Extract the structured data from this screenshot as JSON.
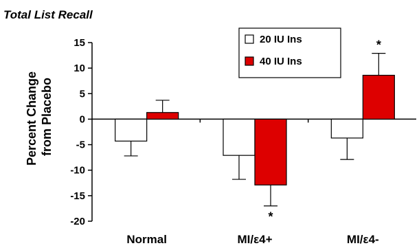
{
  "chart_data": {
    "type": "bar",
    "title": "Total List Recall",
    "ylabel": "Percent Change\nfrom Placebo",
    "xlabel": "",
    "ylim": [
      -20,
      15
    ],
    "yticks": [
      15,
      10,
      5,
      0,
      -5,
      -10,
      -15,
      -20
    ],
    "grid": false,
    "legend_position": "top-center",
    "categories": [
      "Normal",
      "MI/ε4+",
      "MI/ε4-"
    ],
    "series": [
      {
        "name": "20 IU Ins",
        "color": "#ffffff",
        "values": [
          -4.3,
          -7.1,
          -3.7
        ],
        "errors": [
          2.9,
          4.7,
          4.2
        ],
        "significant": [
          false,
          false,
          false
        ]
      },
      {
        "name": "40 IU Ins",
        "color": "#dd0000",
        "values": [
          1.3,
          -12.9,
          8.6
        ],
        "errors": [
          2.4,
          4.1,
          4.3
        ],
        "significant": [
          false,
          true,
          true
        ]
      }
    ],
    "annotations": [
      "*",
      "*"
    ]
  }
}
